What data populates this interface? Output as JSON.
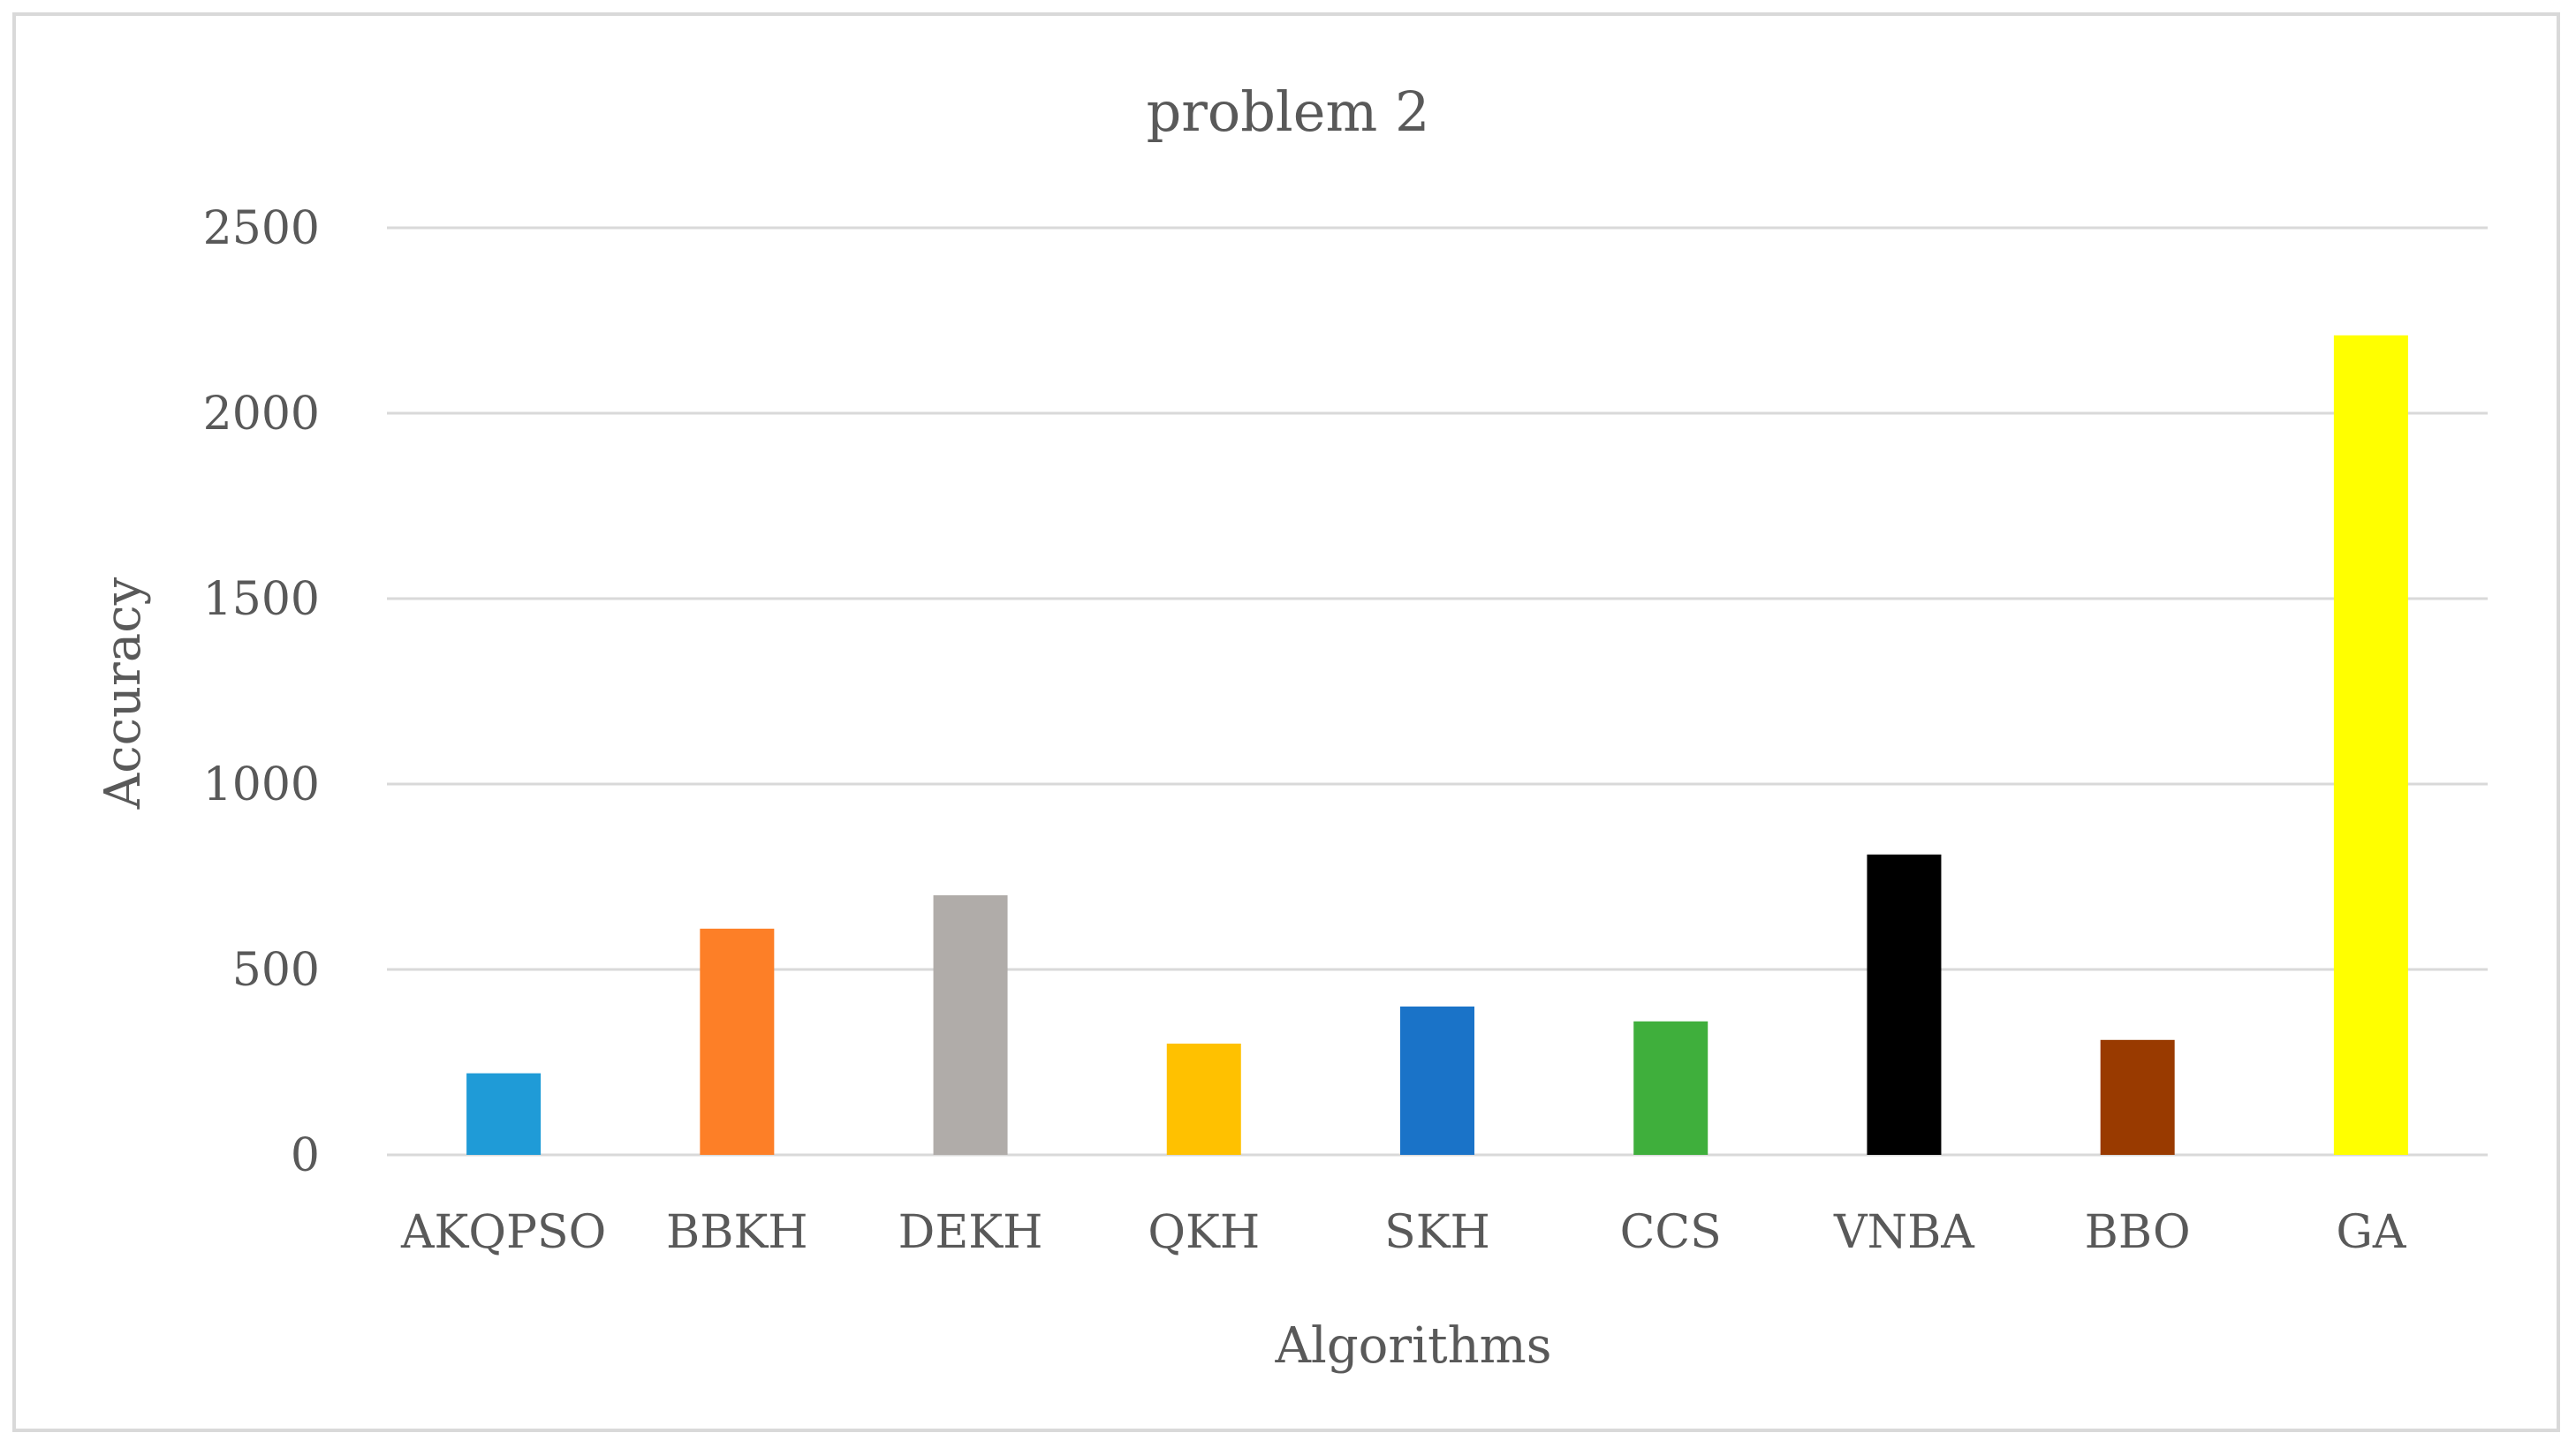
{
  "chart_data": {
    "type": "bar",
    "title": "problem 2",
    "xlabel": "Algorithms",
    "ylabel": "Accuracy",
    "ylim": [
      0,
      2500
    ],
    "yticks": [
      0,
      500,
      1000,
      1500,
      2000,
      2500
    ],
    "grid": true,
    "legend": "none",
    "categories": [
      "AKQPSO",
      "BBKH",
      "DEKH",
      "QKH",
      "SKH",
      "CCS",
      "VNBA",
      "BBO",
      "GA"
    ],
    "values": [
      220,
      610,
      700,
      300,
      400,
      360,
      810,
      310,
      2210
    ],
    "colors": [
      "#1f9bd7",
      "#fd7f27",
      "#b0aca9",
      "#ffc100",
      "#1a73c8",
      "#3faf3c",
      "#000000",
      "#993a00",
      "#ffff00"
    ]
  }
}
